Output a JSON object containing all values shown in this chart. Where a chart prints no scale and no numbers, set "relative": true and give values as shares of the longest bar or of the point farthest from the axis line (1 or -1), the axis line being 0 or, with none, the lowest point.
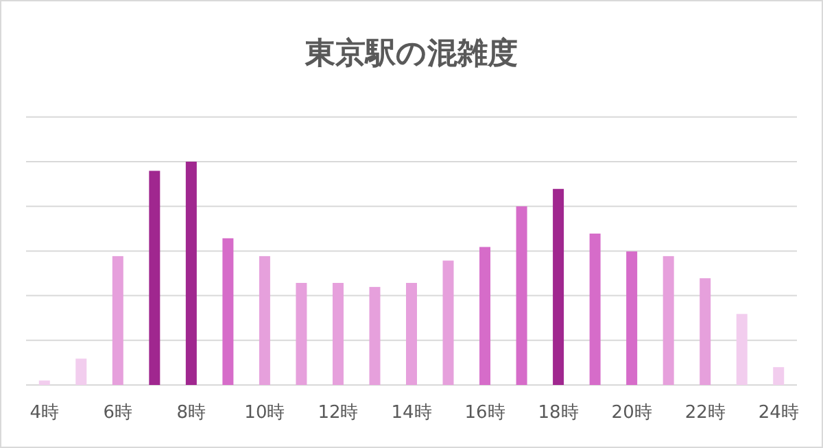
{
  "chart_data": {
    "type": "bar",
    "title": "東京駅の混雑度",
    "relative": true,
    "grid": "y",
    "categories": [
      "4時",
      null,
      "6時",
      null,
      "8時",
      null,
      "10時",
      null,
      "12時",
      null,
      "14時",
      null,
      "16時",
      null,
      "18時",
      null,
      "20時",
      null,
      "22時",
      null,
      "24時"
    ],
    "values": [
      0.02,
      0.118,
      0.577,
      0.959,
      1,
      0.657,
      0.577,
      0.457,
      0.457,
      0.439,
      0.457,
      0.557,
      0.618,
      0.8,
      0.878,
      0.678,
      0.598,
      0.577,
      0.478,
      0.318,
      0.08
    ],
    "colors": [
      "#f2cdee",
      "#f2cdee",
      "#e6a0dc",
      "#a0278f",
      "#a0278f",
      "#d66cc9",
      "#e6a0dc",
      "#e6a0dc",
      "#e6a0dc",
      "#e6a0dc",
      "#e6a0dc",
      "#e6a0dc",
      "#d66cc9",
      "#d66cc9",
      "#a0278f",
      "#d66cc9",
      "#d66cc9",
      "#e6a0dc",
      "#e6a0dc",
      "#f2cdee",
      "#f2cdee"
    ]
  }
}
